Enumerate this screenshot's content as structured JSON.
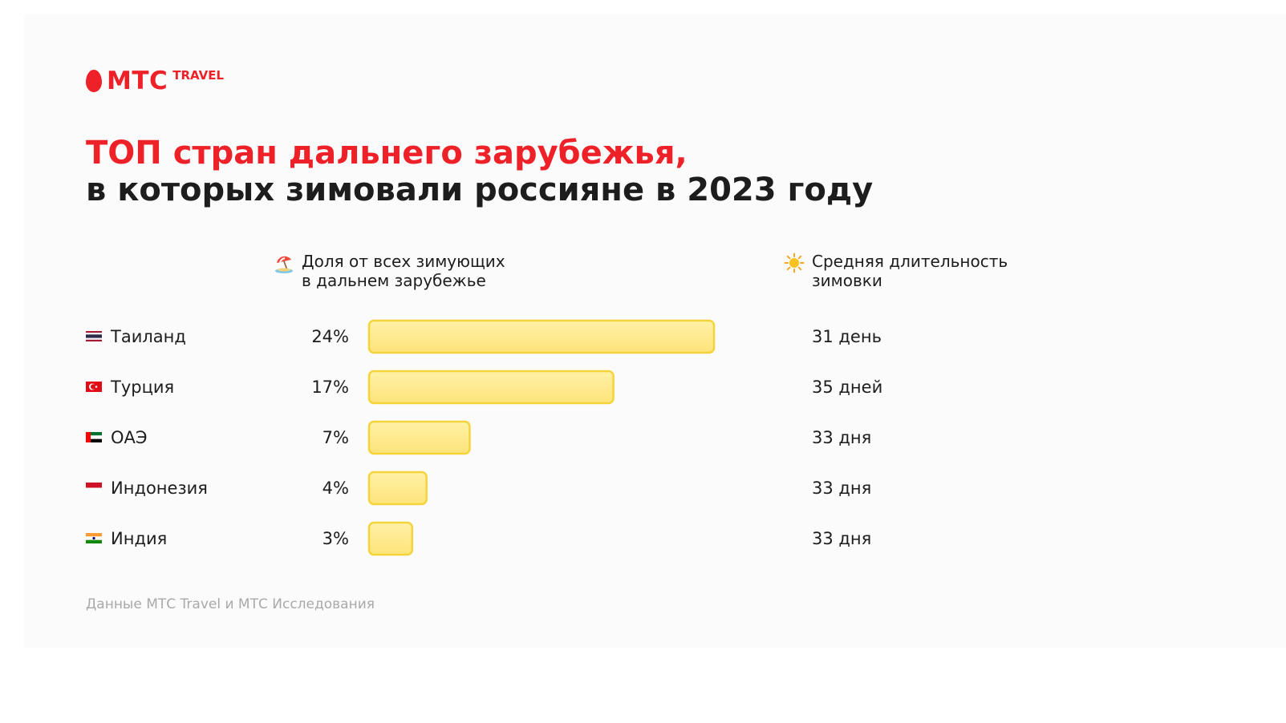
{
  "brand": {
    "name": "МТС",
    "suffix": "TRAVEL",
    "color": "#ee2028"
  },
  "title": {
    "line1": "ТОП стран дальнего зарубежья,",
    "line2": "в которых зимовали россияне в 2023 году"
  },
  "columns": {
    "share": {
      "icon": "beach-umbrella-icon",
      "label": "Доля от всех зимующих\nв дальнем зарубежье"
    },
    "duration": {
      "icon": "sun-icon",
      "label": "Средняя длительность\nзимовки"
    }
  },
  "chart_data": {
    "type": "bar",
    "orientation": "horizontal",
    "categories": [
      "Таиланд",
      "Турция",
      "ОАЭ",
      "Индонезия",
      "Индия"
    ],
    "values": [
      24,
      17,
      7,
      4,
      3
    ],
    "value_labels": [
      "24%",
      "17%",
      "7%",
      "4%",
      "3%"
    ],
    "unit": "%",
    "duration_labels": [
      "31 день",
      "35 дней",
      "33 дня",
      "33 дня",
      "33 дня"
    ],
    "flags": [
      "thailand-flag-icon",
      "turkey-flag-icon",
      "uae-flag-icon",
      "indonesia-flag-icon",
      "india-flag-icon"
    ],
    "bar_color": "#fde886",
    "bar_border_color": "#f5d33a",
    "grid": false
  },
  "footnote": "Данные МТС Travel и МТС Исследования"
}
